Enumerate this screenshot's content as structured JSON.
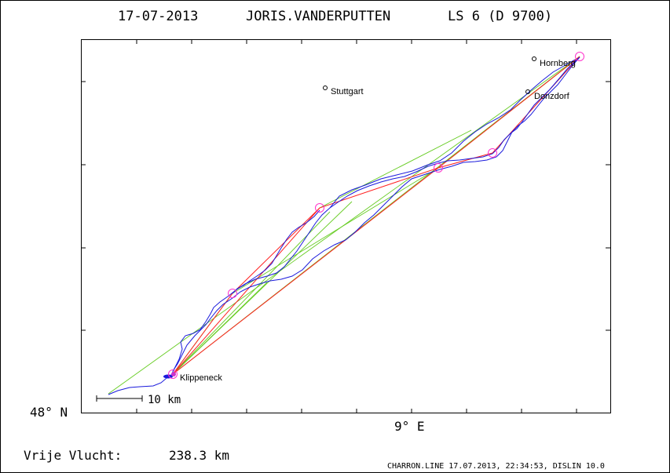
{
  "title": {
    "date": "17-07-2013",
    "pilot": "JORIS.VANDERPUTTEN",
    "glider": "LS 6 (D 9700)"
  },
  "axes": {
    "lat_label": "48° N",
    "lon_label": "9° E"
  },
  "places": [
    {
      "name": "Hornberg"
    },
    {
      "name": "Stuttgart"
    },
    {
      "name": "Donzdorf"
    },
    {
      "name": "Klippeneck"
    }
  ],
  "scale_bar": {
    "label": "10 km"
  },
  "distance": {
    "label": "Vrije Vlucht:",
    "value": "238.3 km"
  },
  "footer": {
    "credit": "CHARRON.LINE 17.07.2013, 22:34:53, DISLIN 10.0"
  },
  "colors": {
    "track": "#1a1adc",
    "scored_legs": "#ff2020",
    "alt_legs": "#66cc22",
    "turnpoints": "#ff33cc",
    "frame": "#000000"
  }
}
